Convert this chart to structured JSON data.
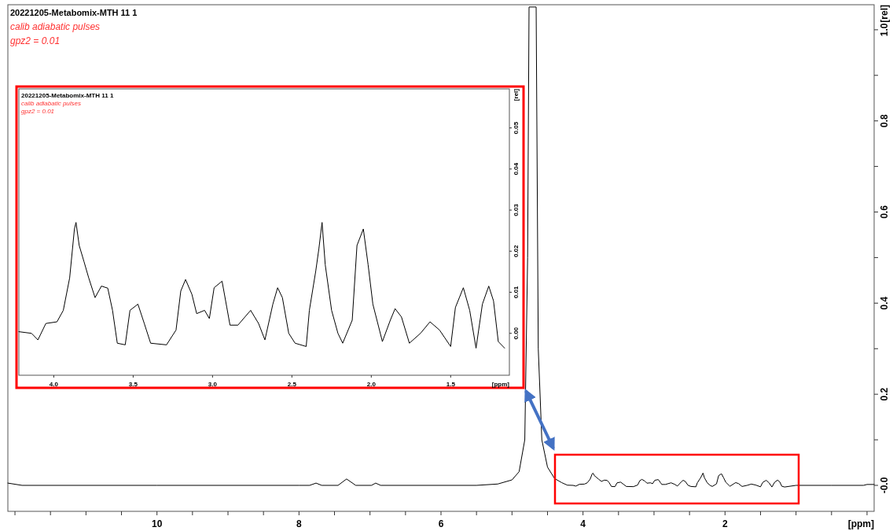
{
  "chart_data": [
    {
      "type": "line",
      "title": "20221205-Metabomix-MTH  11  1",
      "annotations": [
        "calib adiabatic pulses",
        "gpz2 = 0.01"
      ],
      "xlabel": "[ppm]",
      "ylabel": "[rel]",
      "xlim": [
        12.1,
        -0.1
      ],
      "ylim": [
        -0.057,
        1.055
      ],
      "xticks": [
        {
          "value": 12,
          "label": null
        },
        {
          "value": 11.5,
          "label": null
        },
        {
          "value": 11,
          "label": null
        },
        {
          "value": 10.5,
          "label": null
        },
        10,
        {
          "value": 9.5,
          "label": null
        },
        {
          "value": 9,
          "label": null
        },
        {
          "value": 8.5,
          "label": null
        },
        8,
        {
          "value": 7.5,
          "label": null
        },
        {
          "value": 7,
          "label": null
        },
        {
          "value": 6.5,
          "label": null
        },
        6,
        {
          "value": 5.5,
          "label": null
        },
        {
          "value": 5,
          "label": null
        },
        {
          "value": 4.5,
          "label": null
        },
        4,
        {
          "value": 3.5,
          "label": null
        },
        {
          "value": 3,
          "label": null
        },
        {
          "value": 2.5,
          "label": null
        },
        2,
        {
          "value": 1.5,
          "label": null
        },
        {
          "value": 1,
          "label": null
        },
        {
          "value": 0.5,
          "label": null
        },
        {
          "value": 0,
          "label": null
        }
      ],
      "yticks": [
        {
          "value": 0,
          "label": "-0.0"
        },
        {
          "value": 0.1,
          "label": null
        },
        0.2,
        {
          "value": 0.3,
          "label": null
        },
        0.4,
        {
          "value": 0.5,
          "label": null
        },
        0.6,
        {
          "value": 0.7,
          "label": null
        },
        0.8,
        {
          "value": 0.9,
          "label": null
        },
        {
          "value": 1,
          "label": "1.0"
        }
      ],
      "series": [
        {
          "color": "#000000",
          "x": [
            12.1,
            11.9,
            10,
            8,
            7.85,
            7.76,
            7.68,
            7.45,
            7.33,
            7.2,
            6.98,
            6.92,
            6.85,
            5.5,
            5.2,
            5.0,
            4.9,
            4.82,
            4.78,
            4.76,
            4.66,
            4.63,
            4.58,
            4.5,
            4.4,
            4.3,
            4.22,
            4.14,
            4.1,
            4.05,
            3.98,
            3.94,
            3.9,
            3.87,
            3.86,
            3.84,
            3.81,
            3.78,
            3.74,
            3.7,
            3.66,
            3.63,
            3.6,
            3.55,
            3.52,
            3.47,
            3.43,
            3.39,
            3.29,
            3.23,
            3.2,
            3.17,
            3.13,
            3.1,
            3.05,
            3.02,
            2.99,
            2.94,
            2.91,
            2.89,
            2.84,
            2.76,
            2.71,
            2.67,
            2.62,
            2.59,
            2.56,
            2.52,
            2.48,
            2.41,
            2.39,
            2.35,
            2.33,
            2.31,
            2.29,
            2.25,
            2.21,
            2.18,
            2.12,
            2.09,
            2.05,
            2.02,
            1.99,
            1.93,
            1.88,
            1.85,
            1.81,
            1.76,
            1.69,
            1.63,
            1.57,
            1.5,
            1.47,
            1.42,
            1.38,
            1.34,
            1.3,
            1.26,
            1.23,
            1.2,
            1.16,
            1.0,
            0.5,
            0.05,
            0,
            -0.1
          ],
          "values": [
            0.005,
            0,
            0,
            0,
            0,
            0.005,
            0,
            0,
            0.014,
            0,
            0,
            0.005,
            0,
            0,
            0.003,
            0.012,
            0.03,
            0.1,
            0.5,
            1.05,
            1.05,
            0.3,
            0.1,
            0.04,
            0.015,
            0.006,
            0.0004,
            0,
            -0.0016,
            0.0024,
            0.0028,
            0.0056,
            0.0135,
            0.0254,
            0.027,
            0.0214,
            0.0175,
            0.0135,
            0.0087,
            0.0115,
            0.011,
            0.0056,
            -0.0024,
            -0.0028,
            0.0056,
            0.0071,
            0.0024,
            -0.0024,
            -0.0028,
            0.0008,
            0.0103,
            0.0131,
            0.0095,
            0.0048,
            0.0056,
            0.0036,
            0.0111,
            0.0127,
            0.0063,
            0.002,
            0.002,
            0.0056,
            0.0024,
            -0.0016,
            0.0071,
            0.0111,
            0.0087,
            0,
            -0.0024,
            -0.0032,
            0.0056,
            0.0151,
            0.0206,
            0.027,
            0.0167,
            0.0056,
            0,
            -0.0024,
            0.0032,
            0.0214,
            0.0254,
            0.0167,
            0.0071,
            -0.002,
            0.0032,
            0.006,
            0.004,
            -0.0024,
            0,
            0.0028,
            0.0008,
            -0.0032,
            0.0063,
            0.0111,
            0.0056,
            -0.0036,
            0.0071,
            0.0115,
            0.0079,
            -0.002,
            -0.0036,
            0,
            0,
            0,
            0.002,
            0.002
          ]
        }
      ]
    },
    {
      "type": "line",
      "title": "20221205-Metabomix-MTH  11  1",
      "annotations": [
        "calib adiabatic pulses",
        "gpz2 = 0.01"
      ],
      "xlabel": "[ppm]",
      "ylabel": "[rel]",
      "xlim": [
        4.22,
        1.13
      ],
      "ylim": [
        -0.0102,
        0.0595
      ],
      "xticks": [
        {
          "value": 4,
          "label": "4.0"
        },
        3.5,
        {
          "value": 3,
          "label": "3.0"
        },
        2.5,
        {
          "value": 2,
          "label": "2.0"
        },
        1.5
      ],
      "yticks": [
        {
          "value": 0,
          "label": "0.00"
        },
        0.01,
        0.02,
        0.03,
        0.04,
        0.05
      ],
      "series": [
        {
          "color": "#000000",
          "x": [
            4.22,
            4.14,
            4.1,
            4.05,
            3.98,
            3.94,
            3.9,
            3.87,
            3.86,
            3.84,
            3.81,
            3.78,
            3.74,
            3.7,
            3.66,
            3.63,
            3.6,
            3.55,
            3.52,
            3.47,
            3.43,
            3.39,
            3.29,
            3.23,
            3.2,
            3.17,
            3.13,
            3.1,
            3.05,
            3.02,
            2.99,
            2.94,
            2.91,
            2.89,
            2.84,
            2.76,
            2.71,
            2.67,
            2.62,
            2.59,
            2.56,
            2.52,
            2.48,
            2.41,
            2.39,
            2.35,
            2.33,
            2.31,
            2.29,
            2.25,
            2.21,
            2.18,
            2.12,
            2.09,
            2.05,
            2.02,
            1.99,
            1.93,
            1.88,
            1.85,
            1.81,
            1.76,
            1.69,
            1.63,
            1.57,
            1.5,
            1.47,
            1.42,
            1.38,
            1.34,
            1.3,
            1.26,
            1.23,
            1.2,
            1.16
          ],
          "values": [
            0.0004,
            0,
            -0.0016,
            0.0024,
            0.0028,
            0.0056,
            0.0135,
            0.0254,
            0.027,
            0.0214,
            0.0175,
            0.0135,
            0.0087,
            0.0115,
            0.011,
            0.0056,
            -0.0024,
            -0.0028,
            0.0056,
            0.0071,
            0.0024,
            -0.0024,
            -0.0028,
            0.0008,
            0.0103,
            0.0131,
            0.0095,
            0.0048,
            0.0056,
            0.0036,
            0.0111,
            0.0127,
            0.0063,
            0.002,
            0.002,
            0.0056,
            0.0024,
            -0.0016,
            0.0071,
            0.0111,
            0.0087,
            0,
            -0.0024,
            -0.0032,
            0.0056,
            0.0151,
            0.0206,
            0.027,
            0.0167,
            0.0056,
            0,
            -0.0024,
            0.0032,
            0.0214,
            0.0254,
            0.0167,
            0.0071,
            -0.002,
            0.0032,
            0.006,
            0.004,
            -0.0024,
            0,
            0.0028,
            0.0008,
            -0.0032,
            0.0063,
            0.0111,
            0.0056,
            -0.0036,
            0.0071,
            0.0115,
            0.0079,
            -0.002,
            -0.0036
          ]
        }
      ]
    }
  ]
}
